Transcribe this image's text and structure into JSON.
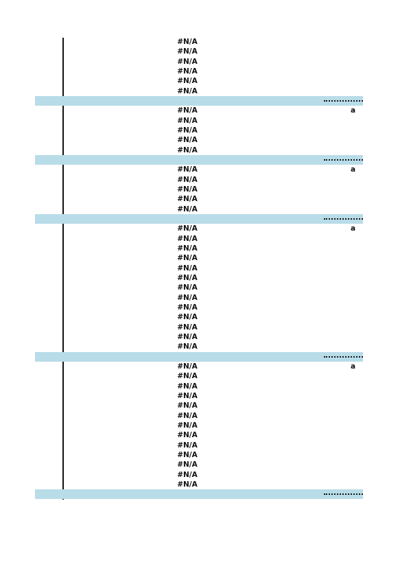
{
  "sections": [
    {
      "rows": [
        "#N/A",
        "#N/A",
        "#N/A",
        "#N/A",
        "#N/A",
        "#N/A"
      ]
    },
    {
      "note": "a",
      "rows": [
        "#N/A",
        "#N/A",
        "#N/A",
        "#N/A",
        "#N/A"
      ]
    },
    {
      "note": "a",
      "rows": [
        "#N/A",
        "#N/A",
        "#N/A",
        "#N/A",
        "#N/A"
      ]
    },
    {
      "note": "a",
      "rows": [
        "#N/A",
        "#N/A",
        "#N/A",
        "#N/A",
        "#N/A",
        "#N/A",
        "#N/A",
        "#N/A",
        "#N/A",
        "#N/A",
        "#N/A",
        "#N/A",
        "#N/A"
      ]
    },
    {
      "note": "a",
      "rows": [
        "#N/A",
        "#N/A",
        "#N/A",
        "#N/A",
        "#N/A",
        "#N/A",
        "#N/A",
        "#N/A",
        "#N/A",
        "#N/A",
        "#N/A",
        "#N/A",
        "#N/A"
      ]
    }
  ]
}
